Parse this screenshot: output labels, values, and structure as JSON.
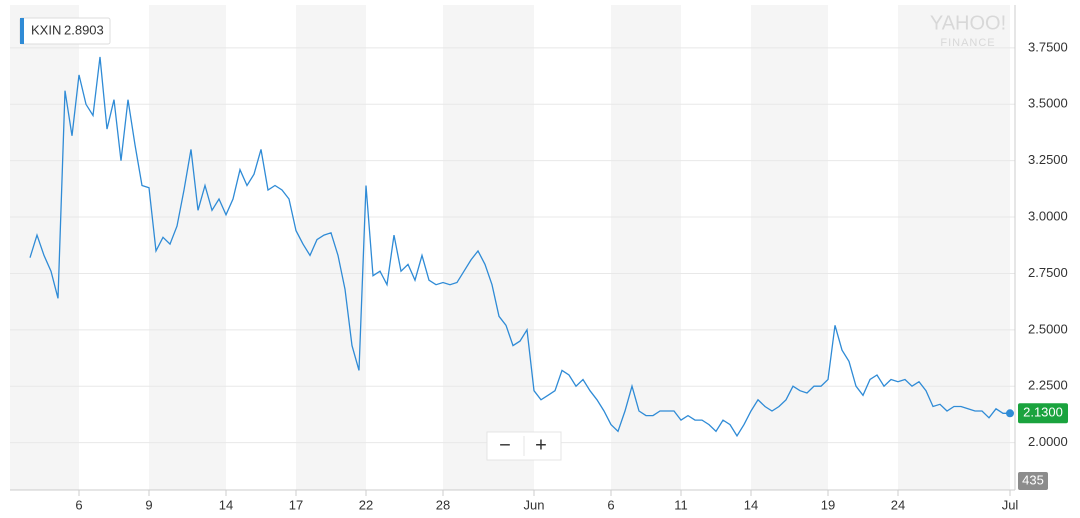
{
  "chart_data": {
    "type": "line",
    "watermark": [
      "YAHOO!",
      "FINANCE"
    ],
    "legend_value": 2.8903,
    "categories": [
      null,
      null,
      null,
      null,
      null,
      null,
      null,
      "6",
      null,
      null,
      null,
      null,
      null,
      null,
      null,
      null,
      null,
      "9",
      null,
      null,
      null,
      null,
      null,
      null,
      null,
      null,
      null,
      null,
      "14",
      null,
      null,
      null,
      null,
      null,
      null,
      null,
      null,
      null,
      "17",
      null,
      null,
      null,
      null,
      null,
      null,
      null,
      null,
      null,
      "22",
      null,
      null,
      null,
      null,
      null,
      null,
      null,
      null,
      null,
      null,
      "28",
      null,
      null,
      null,
      null,
      null,
      null,
      null,
      null,
      null,
      null,
      null,
      null,
      "Jun",
      null,
      null,
      null,
      null,
      null,
      null,
      null,
      null,
      null,
      null,
      "6",
      null,
      null,
      null,
      null,
      null,
      null,
      null,
      null,
      null,
      "11",
      null,
      null,
      null,
      null,
      null,
      null,
      null,
      null,
      null,
      "14",
      null,
      null,
      null,
      null,
      null,
      null,
      null,
      null,
      null,
      null,
      "19",
      null,
      null,
      null,
      null,
      null,
      null,
      null,
      null,
      null,
      "24",
      null,
      null,
      null,
      null,
      null,
      null,
      null,
      null,
      null,
      null,
      null,
      null,
      null,
      null,
      null,
      "Jul"
    ],
    "series": [
      {
        "name": "KXIN",
        "color": "#2f8bd6",
        "values": [
          2.82,
          2.92,
          2.83,
          2.76,
          2.64,
          3.56,
          3.36,
          3.63,
          3.5,
          3.45,
          3.71,
          3.39,
          3.52,
          3.25,
          3.52,
          3.32,
          3.14,
          3.13,
          2.85,
          2.91,
          2.88,
          2.96,
          3.12,
          3.3,
          3.03,
          3.14,
          3.03,
          3.08,
          3.01,
          3.08,
          3.21,
          3.14,
          3.19,
          3.3,
          3.12,
          3.14,
          3.12,
          3.08,
          2.94,
          2.88,
          2.83,
          2.9,
          2.92,
          2.93,
          2.83,
          2.68,
          2.43,
          2.32,
          3.14,
          2.74,
          2.76,
          2.7,
          2.92,
          2.76,
          2.79,
          2.72,
          2.83,
          2.72,
          2.7,
          2.71,
          2.7,
          2.71,
          2.76,
          2.81,
          2.85,
          2.79,
          2.7,
          2.56,
          2.52,
          2.43,
          2.45,
          2.5,
          2.23,
          2.19,
          2.21,
          2.23,
          2.32,
          2.3,
          2.25,
          2.28,
          2.23,
          2.19,
          2.14,
          2.08,
          2.05,
          2.14,
          2.25,
          2.14,
          2.12,
          2.12,
          2.14,
          2.14,
          2.14,
          2.1,
          2.12,
          2.1,
          2.1,
          2.08,
          2.05,
          2.1,
          2.08,
          2.03,
          2.08,
          2.14,
          2.19,
          2.16,
          2.14,
          2.16,
          2.19,
          2.25,
          2.23,
          2.22,
          2.25,
          2.25,
          2.28,
          2.52,
          2.41,
          2.36,
          2.25,
          2.21,
          2.28,
          2.3,
          2.25,
          2.28,
          2.27,
          2.28,
          2.25,
          2.27,
          2.23,
          2.16,
          2.17,
          2.14,
          2.16,
          2.16,
          2.15,
          2.14,
          2.14,
          2.11,
          2.15,
          2.13,
          2.13
        ]
      }
    ],
    "last_price": {
      "value": 2.13,
      "label": "2.1300"
    },
    "last_volume": 435,
    "zoom_controls": [
      "−",
      "+"
    ],
    "ylim": [
      1.79,
      3.94
    ],
    "yticks": [
      {
        "value": 2,
        "label": "2.0000"
      },
      {
        "value": 2.25,
        "label": "2.2500"
      },
      {
        "value": 2.5,
        "label": "2.5000"
      },
      {
        "value": 2.75,
        "label": "2.7500"
      },
      {
        "value": 3,
        "label": "3.0000"
      },
      {
        "value": 3.25,
        "label": "3.2500"
      },
      {
        "value": 3.5,
        "label": "3.5000"
      },
      {
        "value": 3.75,
        "label": "3.7500"
      }
    ],
    "grid": true
  }
}
